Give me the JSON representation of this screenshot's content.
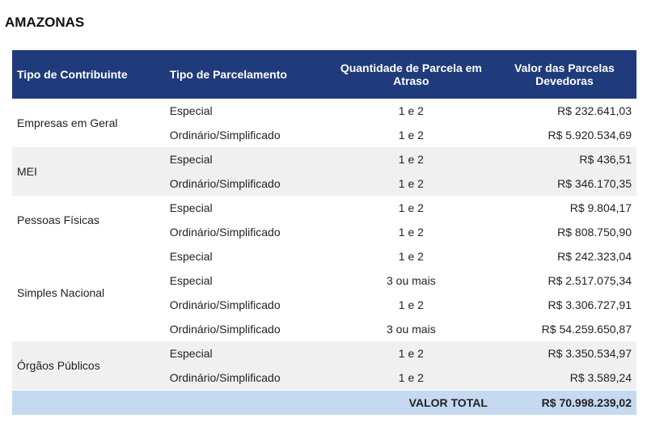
{
  "title": "AMAZONAS",
  "table": {
    "header": [
      "Tipo de Contribuinte",
      "Tipo de Parcelamento",
      "Quantidade de Parcela em Atraso",
      "Valor das Parcelas Devedoras"
    ],
    "groups": [
      {
        "contribuinte": "Empresas em Geral",
        "rows": [
          {
            "parcelamento": "Especial",
            "quantidade": "1 e 2",
            "valor": "R$ 232.641,03"
          },
          {
            "parcelamento": "Ordinário/Simplificado",
            "quantidade": "1 e 2",
            "valor": "R$ 5.920.534,69"
          }
        ]
      },
      {
        "contribuinte": "MEI",
        "rows": [
          {
            "parcelamento": "Especial",
            "quantidade": "1 e 2",
            "valor": "R$ 436,51"
          },
          {
            "parcelamento": "Ordinário/Simplificado",
            "quantidade": "1 e 2",
            "valor": "R$ 346.170,35"
          }
        ]
      },
      {
        "contribuinte": "Pessoas Físicas",
        "rows": [
          {
            "parcelamento": "Especial",
            "quantidade": "1 e 2",
            "valor": "R$ 9.804,17"
          },
          {
            "parcelamento": "Ordinário/Simplificado",
            "quantidade": "1 e 2",
            "valor": "R$ 808.750,90"
          }
        ]
      },
      {
        "contribuinte": "Simples Nacional",
        "rows": [
          {
            "parcelamento": "Especial",
            "quantidade": "1 e 2",
            "valor": "R$ 242.323,04"
          },
          {
            "parcelamento": "Especial",
            "quantidade": "3 ou mais",
            "valor": "R$ 2.517.075,34"
          },
          {
            "parcelamento": "Ordinário/Simplificado",
            "quantidade": "1 e 2",
            "valor": "R$ 3.306.727,91"
          },
          {
            "parcelamento": "Ordinário/Simplificado",
            "quantidade": "3 ou mais",
            "valor": "R$ 54.259.650,87"
          }
        ]
      },
      {
        "contribuinte": "Órgãos Públicos",
        "rows": [
          {
            "parcelamento": "Especial",
            "quantidade": "1 e 2",
            "valor": "R$ 3.350.534,97"
          },
          {
            "parcelamento": "Ordinário/Simplificado",
            "quantidade": "1 e 2",
            "valor": "R$ 3.589,24"
          }
        ]
      }
    ],
    "total": {
      "label": "VALOR TOTAL",
      "value": "R$ 70.998.239,02"
    }
  }
}
